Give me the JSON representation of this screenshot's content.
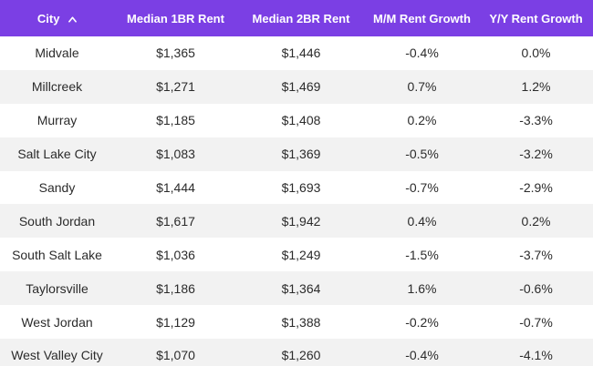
{
  "table": {
    "headers": {
      "city": "City",
      "median_1br": "Median 1BR Rent",
      "median_2br": "Median 2BR Rent",
      "mm_growth": "M/M Rent Growth",
      "yy_growth": "Y/Y Rent Growth"
    },
    "sort_icon": "chevron-up-icon",
    "header_color": "#7b3fe4",
    "rows": [
      {
        "city": "Midvale",
        "r1": "$1,365",
        "r2": "$1,446",
        "mm": "-0.4%",
        "yy": "0.0%"
      },
      {
        "city": "Millcreek",
        "r1": "$1,271",
        "r2": "$1,469",
        "mm": "0.7%",
        "yy": "1.2%"
      },
      {
        "city": "Murray",
        "r1": "$1,185",
        "r2": "$1,408",
        "mm": "0.2%",
        "yy": "-3.3%"
      },
      {
        "city": "Salt Lake City",
        "r1": "$1,083",
        "r2": "$1,369",
        "mm": "-0.5%",
        "yy": "-3.2%"
      },
      {
        "city": "Sandy",
        "r1": "$1,444",
        "r2": "$1,693",
        "mm": "-0.7%",
        "yy": "-2.9%"
      },
      {
        "city": "South Jordan",
        "r1": "$1,617",
        "r2": "$1,942",
        "mm": "0.4%",
        "yy": "0.2%"
      },
      {
        "city": "South Salt Lake",
        "r1": "$1,036",
        "r2": "$1,249",
        "mm": "-1.5%",
        "yy": "-3.7%"
      },
      {
        "city": "Taylorsville",
        "r1": "$1,186",
        "r2": "$1,364",
        "mm": "1.6%",
        "yy": "-0.6%"
      },
      {
        "city": "West Jordan",
        "r1": "$1,129",
        "r2": "$1,388",
        "mm": "-0.2%",
        "yy": "-0.7%"
      },
      {
        "city": "West Valley City",
        "r1": "$1,070",
        "r2": "$1,260",
        "mm": "-0.4%",
        "yy": "-4.1%"
      }
    ]
  }
}
